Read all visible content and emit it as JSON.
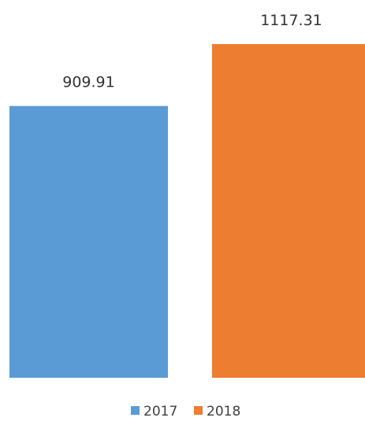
{
  "chart_data": {
    "type": "bar",
    "categories": [
      "2017",
      "2018"
    ],
    "values": [
      909.91,
      1117.31
    ],
    "value_labels": [
      "909.91",
      "1117.31"
    ],
    "colors": [
      "#5b9bd5",
      "#ed7d31"
    ],
    "title": "",
    "xlabel": "",
    "ylabel": "",
    "ylim": [
      0,
      1117.31
    ],
    "grid": false,
    "legend": {
      "position": "bottom",
      "entries": [
        {
          "label": "2017",
          "color": "#5b9bd5"
        },
        {
          "label": "2018",
          "color": "#ed7d31"
        }
      ]
    }
  }
}
